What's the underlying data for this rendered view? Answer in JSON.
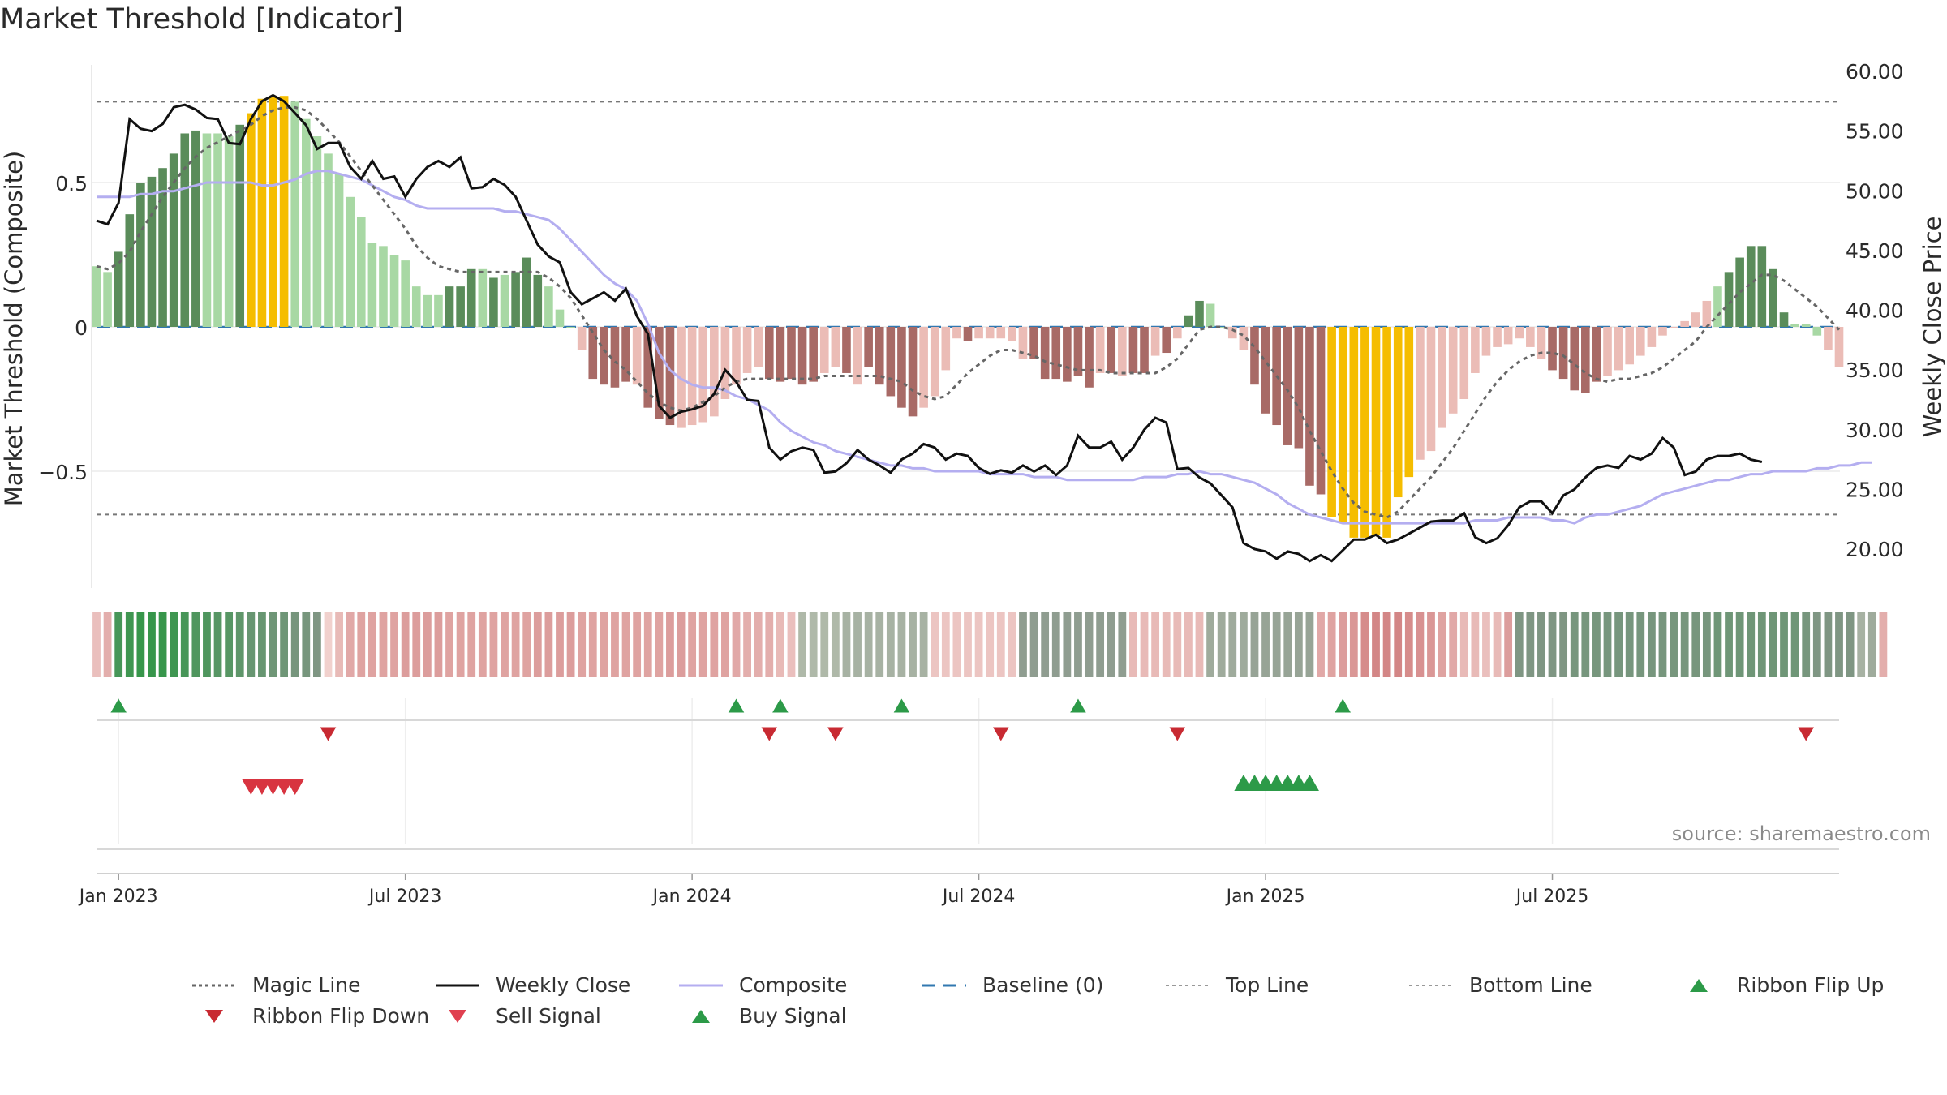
{
  "title": "Market Threshold [Indicator]",
  "source": "source: sharemaestro.com",
  "colors": {
    "dark_green": "#5a8c5a",
    "light_green": "#a8d8a4",
    "gold": "#f5bd00",
    "dark_red": "#a86a66",
    "light_red": "#ebbcb6",
    "composite": "#b4aef0",
    "close": "#111111",
    "magic": "#666666",
    "baseline": "#3278b0",
    "buy": "#2c9a48",
    "sell": "#d83440"
  },
  "chart_data": {
    "type": "bar",
    "title": "Market Threshold [Indicator]",
    "ylabel_left": "Market Threshold (Composite)",
    "ylabel_right": "Weekly Close Price",
    "left_ylim": [
      -0.91,
      0.91
    ],
    "right_ylim": [
      16.5,
      60.0
    ],
    "left_ticks": [
      "0.5",
      "0",
      "−0.5"
    ],
    "right_ticks": [
      "60.00",
      "55.00",
      "50.00",
      "45.00",
      "40.00",
      "35.00",
      "30.00",
      "25.00",
      "20.00"
    ],
    "x_ticks": [
      "Jan 2023",
      "Jul 2023",
      "Jan 2024",
      "Jul 2024",
      "Jan 2025",
      "Jul 2025"
    ],
    "top_line": 0.78,
    "bottom_line": -0.65,
    "baseline": 0,
    "grid": "horizontal",
    "composite_bars": [
      0.21,
      0.19,
      0.26,
      0.39,
      0.5,
      0.52,
      0.55,
      0.6,
      0.67,
      0.68,
      0.67,
      0.67,
      0.66,
      0.7,
      0.74,
      0.79,
      0.8,
      0.8,
      0.78,
      0.72,
      0.66,
      0.6,
      0.53,
      0.45,
      0.38,
      0.29,
      0.28,
      0.25,
      0.23,
      0.14,
      0.11,
      0.11,
      0.14,
      0.14,
      0.2,
      0.2,
      0.17,
      0.18,
      0.19,
      0.24,
      0.18,
      0.14,
      0.06,
      0.0,
      -0.08,
      -0.18,
      -0.2,
      -0.21,
      -0.19,
      -0.2,
      -0.28,
      -0.32,
      -0.34,
      -0.35,
      -0.34,
      -0.33,
      -0.31,
      -0.25,
      -0.2,
      -0.16,
      -0.14,
      -0.18,
      -0.19,
      -0.18,
      -0.2,
      -0.19,
      -0.16,
      -0.14,
      -0.16,
      -0.2,
      -0.14,
      -0.2,
      -0.24,
      -0.28,
      -0.31,
      -0.28,
      -0.24,
      -0.15,
      -0.04,
      -0.05,
      -0.04,
      -0.04,
      -0.04,
      -0.05,
      -0.11,
      -0.11,
      -0.18,
      -0.18,
      -0.19,
      -0.17,
      -0.21,
      -0.16,
      -0.16,
      -0.17,
      -0.16,
      -0.16,
      -0.1,
      -0.09,
      -0.04,
      0.04,
      0.09,
      0.08,
      0.0,
      -0.04,
      -0.08,
      -0.2,
      -0.3,
      -0.34,
      -0.41,
      -0.42,
      -0.55,
      -0.58,
      -0.66,
      -0.68,
      -0.73,
      -0.73,
      -0.72,
      -0.73,
      -0.59,
      -0.52,
      -0.46,
      -0.43,
      -0.35,
      -0.3,
      -0.25,
      -0.16,
      -0.1,
      -0.07,
      -0.06,
      -0.04,
      -0.07,
      -0.11,
      -0.15,
      -0.18,
      -0.22,
      -0.23,
      -0.19,
      -0.17,
      -0.15,
      -0.13,
      -0.1,
      -0.07,
      -0.03,
      0.0,
      0.02,
      0.05,
      0.09,
      0.14,
      0.19,
      0.24,
      0.28,
      0.28,
      0.2,
      0.05,
      0.01,
      0.01,
      -0.03,
      -0.08,
      -0.14
    ],
    "bar_colors": [
      "lg",
      "lg",
      "dg",
      "dg",
      "dg",
      "dg",
      "dg",
      "dg",
      "dg",
      "dg",
      "lg",
      "lg",
      "lg",
      "dg",
      "go",
      "go",
      "go",
      "go",
      "lg",
      "lg",
      "lg",
      "lg",
      "lg",
      "lg",
      "lg",
      "lg",
      "lg",
      "lg",
      "lg",
      "lg",
      "lg",
      "lg",
      "dg",
      "dg",
      "dg",
      "lg",
      "dg",
      "lg",
      "dg",
      "dg",
      "dg",
      "lg",
      "lg",
      "lg",
      "lr",
      "dr",
      "dr",
      "dr",
      "dr",
      "lr",
      "dr",
      "dr",
      "dr",
      "lr",
      "lr",
      "lr",
      "lr",
      "lr",
      "lr",
      "lr",
      "lr",
      "dr",
      "dr",
      "dr",
      "dr",
      "dr",
      "lr",
      "lr",
      "dr",
      "lr",
      "dr",
      "dr",
      "dr",
      "dr",
      "dr",
      "lr",
      "lr",
      "lr",
      "lr",
      "dr",
      "lr",
      "lr",
      "lr",
      "lr",
      "lr",
      "dr",
      "dr",
      "dr",
      "dr",
      "dr",
      "dr",
      "lr",
      "dr",
      "lr",
      "dr",
      "dr",
      "lr",
      "dr",
      "lr",
      "dg",
      "dg",
      "lg",
      "lg",
      "lr",
      "lr",
      "dr",
      "dr",
      "dr",
      "dr",
      "dr",
      "dr",
      "dr",
      "go",
      "go",
      "go",
      "go",
      "go",
      "go",
      "go",
      "go",
      "lr",
      "lr",
      "lr",
      "lr",
      "lr",
      "lr",
      "lr",
      "lr",
      "lr",
      "lr",
      "lr",
      "lr",
      "dr",
      "dr",
      "dr",
      "dr",
      "dr",
      "lr",
      "lr",
      "lr",
      "lr",
      "lr",
      "lr",
      "lr",
      "lr",
      "lr",
      "lr",
      "lg",
      "dg",
      "dg",
      "dg",
      "dg",
      "dg",
      "dg",
      "lg",
      "lg",
      "lg",
      "lr",
      "lr",
      "lr",
      "lr",
      "dr",
      "dr"
    ],
    "composite_line": [
      0.45,
      0.45,
      0.45,
      0.45,
      0.46,
      0.46,
      0.47,
      0.47,
      0.48,
      0.49,
      0.5,
      0.5,
      0.5,
      0.5,
      0.5,
      0.49,
      0.49,
      0.5,
      0.51,
      0.53,
      0.54,
      0.54,
      0.53,
      0.52,
      0.51,
      0.49,
      0.47,
      0.45,
      0.44,
      0.42,
      0.41,
      0.41,
      0.41,
      0.41,
      0.41,
      0.41,
      0.41,
      0.4,
      0.4,
      0.39,
      0.38,
      0.37,
      0.34,
      0.3,
      0.26,
      0.22,
      0.18,
      0.15,
      0.13,
      0.09,
      0.01,
      -0.09,
      -0.15,
      -0.18,
      -0.2,
      -0.21,
      -0.21,
      -0.22,
      -0.24,
      -0.25,
      -0.27,
      -0.29,
      -0.33,
      -0.36,
      -0.38,
      -0.4,
      -0.41,
      -0.43,
      -0.44,
      -0.45,
      -0.46,
      -0.47,
      -0.48,
      -0.48,
      -0.49,
      -0.49,
      -0.5,
      -0.5,
      -0.5,
      -0.5,
      -0.5,
      -0.51,
      -0.51,
      -0.51,
      -0.51,
      -0.52,
      -0.52,
      -0.52,
      -0.53,
      -0.53,
      -0.53,
      -0.53,
      -0.53,
      -0.53,
      -0.53,
      -0.52,
      -0.52,
      -0.52,
      -0.51,
      -0.51,
      -0.5,
      -0.51,
      -0.51,
      -0.52,
      -0.53,
      -0.54,
      -0.56,
      -0.58,
      -0.61,
      -0.63,
      -0.65,
      -0.66,
      -0.67,
      -0.68,
      -0.68,
      -0.68,
      -0.68,
      -0.68,
      -0.68,
      -0.68,
      -0.68,
      -0.68,
      -0.68,
      -0.68,
      -0.68,
      -0.67,
      -0.67,
      -0.67,
      -0.66,
      -0.66,
      -0.66,
      -0.66,
      -0.67,
      -0.67,
      -0.68,
      -0.66,
      -0.65,
      -0.65,
      -0.64,
      -0.63,
      -0.62,
      -0.6,
      -0.58,
      -0.57,
      -0.56,
      -0.55,
      -0.54,
      -0.53,
      -0.53,
      -0.52,
      -0.51,
      -0.51,
      -0.5,
      -0.5,
      -0.5,
      -0.5,
      -0.49,
      -0.49,
      -0.48,
      -0.48,
      -0.47,
      -0.47
    ],
    "magic_line": [
      0.21,
      0.2,
      0.22,
      0.26,
      0.33,
      0.39,
      0.45,
      0.5,
      0.55,
      0.59,
      0.62,
      0.64,
      0.66,
      0.68,
      0.7,
      0.73,
      0.75,
      0.76,
      0.76,
      0.75,
      0.72,
      0.68,
      0.64,
      0.59,
      0.54,
      0.49,
      0.44,
      0.39,
      0.34,
      0.28,
      0.24,
      0.21,
      0.2,
      0.19,
      0.19,
      0.19,
      0.19,
      0.19,
      0.19,
      0.19,
      0.19,
      0.17,
      0.14,
      0.1,
      0.04,
      -0.02,
      -0.08,
      -0.12,
      -0.15,
      -0.19,
      -0.23,
      -0.26,
      -0.28,
      -0.29,
      -0.28,
      -0.26,
      -0.24,
      -0.21,
      -0.19,
      -0.18,
      -0.18,
      -0.18,
      -0.18,
      -0.18,
      -0.18,
      -0.18,
      -0.17,
      -0.17,
      -0.17,
      -0.17,
      -0.17,
      -0.17,
      -0.18,
      -0.19,
      -0.22,
      -0.24,
      -0.25,
      -0.24,
      -0.2,
      -0.16,
      -0.13,
      -0.1,
      -0.08,
      -0.08,
      -0.09,
      -0.1,
      -0.12,
      -0.13,
      -0.14,
      -0.15,
      -0.15,
      -0.15,
      -0.16,
      -0.16,
      -0.16,
      -0.16,
      -0.16,
      -0.14,
      -0.11,
      -0.06,
      -0.01,
      0.0,
      0.0,
      -0.01,
      -0.03,
      -0.07,
      -0.12,
      -0.17,
      -0.22,
      -0.28,
      -0.36,
      -0.43,
      -0.5,
      -0.56,
      -0.61,
      -0.64,
      -0.65,
      -0.66,
      -0.64,
      -0.6,
      -0.56,
      -0.52,
      -0.47,
      -0.42,
      -0.36,
      -0.3,
      -0.24,
      -0.19,
      -0.15,
      -0.12,
      -0.1,
      -0.09,
      -0.09,
      -0.1,
      -0.13,
      -0.16,
      -0.18,
      -0.19,
      -0.18,
      -0.18,
      -0.17,
      -0.16,
      -0.14,
      -0.11,
      -0.08,
      -0.05,
      0.0,
      0.04,
      0.08,
      0.12,
      0.15,
      0.18,
      0.18,
      0.16,
      0.13,
      0.1,
      0.07,
      0.03,
      -0.01
    ],
    "weekly_close": [
      47.5,
      47.2,
      49.0,
      56.0,
      55.2,
      55.0,
      55.6,
      57.0,
      57.2,
      56.8,
      56.1,
      56.0,
      54.0,
      53.9,
      56.0,
      57.5,
      58.0,
      57.5,
      56.5,
      55.5,
      53.5,
      54.0,
      54.0,
      52.0,
      51.0,
      52.5,
      51.0,
      51.2,
      49.5,
      51.0,
      52.0,
      52.5,
      52.0,
      52.8,
      50.2,
      50.3,
      51.0,
      50.5,
      49.5,
      47.5,
      45.5,
      44.5,
      44.0,
      41.5,
      40.5,
      41.0,
      41.5,
      40.8,
      41.8,
      39.5,
      38.0,
      32.0,
      31.0,
      31.5,
      31.7,
      32.0,
      33.0,
      35.0,
      34.0,
      32.5,
      32.4,
      28.5,
      27.5,
      28.2,
      28.5,
      28.3,
      26.4,
      26.5,
      27.2,
      28.3,
      27.5,
      27.0,
      26.4,
      27.5,
      28.0,
      28.8,
      28.5,
      27.5,
      28.0,
      27.8,
      26.8,
      26.3,
      26.6,
      26.4,
      27.0,
      26.5,
      27.0,
      26.2,
      27.0,
      29.5,
      28.5,
      28.5,
      29.0,
      27.5,
      28.5,
      30.0,
      31.0,
      30.6,
      26.7,
      26.8,
      26.0,
      25.5,
      24.5,
      23.5,
      20.5,
      20.0,
      19.8,
      19.2,
      19.8,
      19.6,
      19.0,
      19.5,
      19.0,
      19.9,
      20.8,
      20.8,
      21.2,
      20.5,
      20.8,
      21.3,
      21.8,
      22.3,
      22.4,
      22.4,
      23.0,
      21.0,
      20.5,
      20.9,
      22.0,
      23.5,
      24.0,
      24.0,
      23.0,
      24.5,
      25.0,
      26.0,
      26.8,
      27.0,
      26.8,
      27.8,
      27.5,
      28.0,
      29.3,
      28.5,
      26.2,
      26.5,
      27.5,
      27.8,
      27.8,
      28.0,
      27.5,
      27.3
    ],
    "ribbon": [
      0.25,
      0.4,
      0.9,
      0.95,
      1.0,
      1.0,
      1.0,
      0.95,
      0.9,
      0.85,
      0.85,
      0.8,
      0.8,
      0.75,
      0.7,
      0.7,
      0.65,
      0.65,
      0.6,
      0.6,
      0.55,
      0.1,
      0.3,
      0.45,
      0.5,
      0.5,
      0.5,
      0.5,
      0.55,
      0.55,
      0.55,
      0.55,
      0.5,
      0.5,
      0.5,
      0.5,
      0.5,
      0.5,
      0.5,
      0.5,
      0.55,
      0.55,
      0.55,
      0.55,
      0.5,
      0.5,
      0.5,
      0.5,
      0.5,
      0.5,
      0.5,
      0.5,
      0.55,
      0.55,
      0.5,
      0.5,
      0.5,
      0.5,
      0.45,
      0.4,
      0.4,
      0.4,
      0.3,
      0.25,
      0.25,
      0.25,
      0.25,
      0.25,
      0.3,
      0.3,
      0.3,
      0.3,
      0.3,
      0.3,
      0.3,
      0.3,
      0.2,
      0.2,
      0.2,
      0.2,
      0.2,
      0.2,
      0.2,
      0.2,
      0.45,
      0.45,
      0.45,
      0.45,
      0.45,
      0.45,
      0.45,
      0.45,
      0.45,
      0.45,
      0.3,
      0.3,
      0.3,
      0.3,
      0.3,
      0.3,
      0.3,
      0.35,
      0.35,
      0.35,
      0.35,
      0.4,
      0.4,
      0.4,
      0.4,
      0.4,
      0.4,
      0.45,
      0.5,
      0.55,
      0.6,
      0.7,
      0.75,
      0.75,
      0.75,
      0.7,
      0.65,
      0.6,
      0.5,
      0.45,
      0.3,
      0.3,
      0.25,
      0.3,
      0.55,
      0.55,
      0.55,
      0.55,
      0.55,
      0.55,
      0.6,
      0.6,
      0.6,
      0.6,
      0.6,
      0.6,
      0.6,
      0.6,
      0.6,
      0.6,
      0.6,
      0.6,
      0.6,
      0.65,
      0.65,
      0.65,
      0.65,
      0.65,
      0.65,
      0.65,
      0.65,
      0.6,
      0.55,
      0.55,
      0.55,
      0.55,
      0.3,
      0.35,
      0.4
    ],
    "ribbon_sign": [
      -1,
      -1,
      1,
      1,
      1,
      1,
      1,
      1,
      1,
      1,
      1,
      1,
      1,
      1,
      1,
      1,
      1,
      1,
      1,
      1,
      1,
      -1,
      -1,
      -1,
      -1,
      -1,
      -1,
      -1,
      -1,
      -1,
      -1,
      -1,
      -1,
      -1,
      -1,
      -1,
      -1,
      -1,
      -1,
      -1,
      -1,
      -1,
      -1,
      -1,
      -1,
      -1,
      -1,
      -1,
      -1,
      -1,
      -1,
      -1,
      -1,
      -1,
      -1,
      -1,
      -1,
      -1,
      -1,
      -1,
      -1,
      -1,
      -1,
      -1,
      1,
      1,
      1,
      1,
      1,
      1,
      1,
      1,
      1,
      1,
      1,
      1,
      -1,
      -1,
      -1,
      -1,
      -1,
      -1,
      -1,
      -1,
      1,
      1,
      1,
      1,
      1,
      1,
      1,
      1,
      1,
      1,
      -1,
      -1,
      -1,
      -1,
      -1,
      -1,
      -1,
      1,
      1,
      1,
      1,
      1,
      1,
      1,
      1,
      1,
      1,
      -1,
      -1,
      -1,
      -1,
      -1,
      -1,
      -1,
      -1,
      -1,
      -1,
      -1,
      -1,
      -1,
      -1,
      -1,
      -1,
      -1,
      -1,
      1,
      1,
      1,
      1,
      1,
      1,
      1,
      1,
      1,
      1,
      1,
      1,
      1,
      1,
      1,
      1,
      1,
      1,
      1,
      1,
      1,
      1,
      1,
      1,
      1,
      1,
      1,
      1,
      1,
      1,
      1,
      1,
      1,
      -1,
      -1,
      -1
    ],
    "ribbon_flip_up": [
      2,
      58,
      62,
      73,
      89,
      113
    ],
    "ribbon_flip_down": [
      21,
      61,
      67,
      82,
      98,
      155
    ],
    "sell_signal": [
      14,
      15,
      16,
      17,
      18
    ],
    "buy_signal": [
      104,
      105,
      106,
      107,
      108,
      109,
      110
    ],
    "legend": [
      {
        "label": "Magic Line",
        "type": "dotted",
        "color": "#666666"
      },
      {
        "label": "Weekly Close",
        "type": "solid",
        "color": "#111111"
      },
      {
        "label": "Composite",
        "type": "solid",
        "color": "#b4aef0"
      },
      {
        "label": "Baseline (0)",
        "type": "dashed",
        "color": "#3278b0"
      },
      {
        "label": "Top Line",
        "type": "dotted-thin",
        "color": "#999999"
      },
      {
        "label": "Bottom Line",
        "type": "dotted-thin",
        "color": "#999999"
      },
      {
        "label": "Ribbon Flip Up",
        "type": "tri-up",
        "color": "#2c9a48"
      },
      {
        "label": "Ribbon Flip Down",
        "type": "tri-down",
        "color": "#c82a32"
      },
      {
        "label": "Sell Signal",
        "type": "tri-down",
        "color": "#e04050"
      },
      {
        "label": "Buy Signal",
        "type": "tri-up",
        "color": "#2c9a48"
      }
    ]
  }
}
